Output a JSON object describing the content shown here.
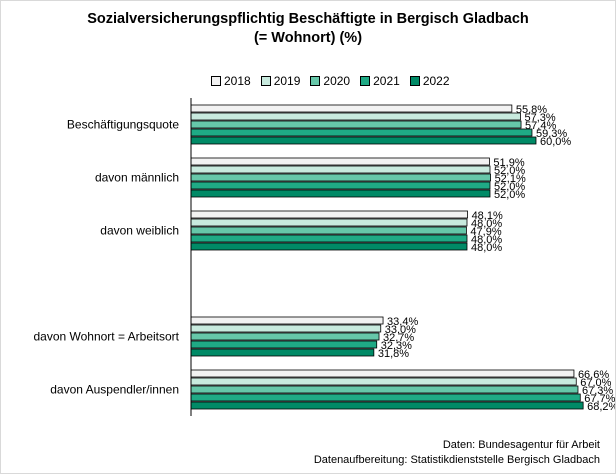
{
  "chart_data": {
    "type": "bar",
    "orientation": "horizontal",
    "title": "Sozialversicherungspflichtig Beschäftigte in Bergisch Gladbach",
    "subtitle": "(= Wohnort) (%)",
    "categories": [
      "Beschäftigungsquote",
      "davon männlich",
      "davon weiblich",
      "",
      "davon Wohnort = Arbeitsort",
      "davon Auspendler/innen"
    ],
    "series": [
      {
        "name": "2018",
        "color": "#f2f2f2",
        "values": [
          55.8,
          51.9,
          48.1,
          null,
          33.4,
          66.6
        ],
        "labels": [
          "55,8%",
          "51,9%",
          "48,1%",
          "",
          "33,4%",
          "66,6%"
        ]
      },
      {
        "name": "2019",
        "color": "#c8eade",
        "values": [
          57.3,
          52.0,
          48.0,
          null,
          33.0,
          67.0
        ],
        "labels": [
          "57,3%",
          "52,0%",
          "48,0%",
          "",
          "33,0%",
          "67,0%"
        ]
      },
      {
        "name": "2020",
        "color": "#66c7a9",
        "values": [
          57.4,
          52.1,
          47.9,
          null,
          32.7,
          67.3
        ],
        "labels": [
          "57,4%",
          "52,1%",
          "47,9%",
          "",
          "32,7%",
          "67,3%"
        ]
      },
      {
        "name": "2021",
        "color": "#1faa85",
        "values": [
          59.3,
          52.0,
          48.0,
          null,
          32.3,
          67.7
        ],
        "labels": [
          "59,3%",
          "52,0%",
          "48,0%",
          "",
          "32,3%",
          "67,7%"
        ]
      },
      {
        "name": "2022",
        "color": "#008a66",
        "values": [
          60.0,
          52.0,
          48.0,
          null,
          31.8,
          68.2
        ],
        "labels": [
          "60,0%",
          "52,0%",
          "48,0%",
          "",
          "31,8%",
          "68,2%"
        ]
      }
    ],
    "xlim": [
      0,
      100
    ],
    "grid": false,
    "legend": "top"
  },
  "source": {
    "line1": "Daten: Bundesagentur für Arbeit",
    "line2": "Datenaufbereitung: Statistikdienststelle Bergisch Gladbach"
  }
}
